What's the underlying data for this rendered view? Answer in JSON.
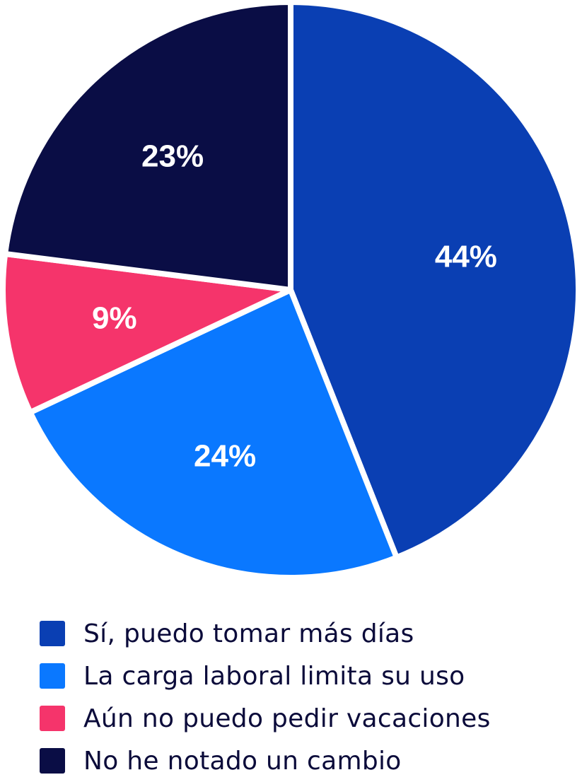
{
  "chart_data": {
    "type": "pie",
    "title": "",
    "categories": [
      "Sí, puedo tomar más días",
      "La carga laboral limita su uso",
      "Aún no puedo pedir vacaciones",
      "No he notado un cambio"
    ],
    "values": [
      44,
      24,
      9,
      23
    ],
    "value_labels": [
      "44%",
      "24%",
      "9%",
      "23%"
    ],
    "colors": [
      "#0a3fb3",
      "#0a78ff",
      "#f5346b",
      "#0a0d45"
    ],
    "start": "12 o'clock",
    "direction": "clockwise",
    "legend_placement": "bottom-left"
  }
}
